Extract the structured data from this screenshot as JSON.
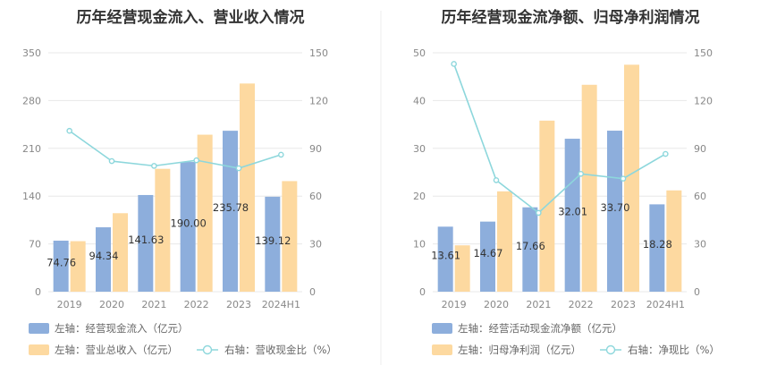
{
  "chart_data": [
    {
      "type": "bar",
      "title": "历年经营现金流入、营业收入情况",
      "categories": [
        "2019",
        "2020",
        "2021",
        "2022",
        "2023",
        "2024H1"
      ],
      "left_axis": {
        "ylim": [
          0,
          350
        ],
        "ticks": [
          "0",
          "70",
          "140",
          "210",
          "280",
          "350"
        ]
      },
      "right_axis": {
        "ylim": [
          0,
          150
        ],
        "ticks": [
          "0",
          "30",
          "60",
          "90",
          "120",
          "150"
        ]
      },
      "series": [
        {
          "name": "左轴：经营现金流入（亿元）",
          "kind": "bar",
          "axis": "left",
          "color": "#8DAEDC",
          "values": [
            74.76,
            94.34,
            141.63,
            190.0,
            235.78,
            139.12
          ],
          "labels": [
            "74.76",
            "94.34",
            "141.63",
            "190.00",
            "235.78",
            "139.12"
          ]
        },
        {
          "name": "左轴：营业总收入（亿元）",
          "kind": "bar",
          "axis": "left",
          "color": "#FDD9A0",
          "values": [
            74,
            115,
            180,
            230,
            305,
            162
          ]
        },
        {
          "name": "右轴：营收现金比（%）",
          "kind": "line",
          "axis": "right",
          "color": "#8DD7DC",
          "values": [
            101,
            82,
            79,
            82.5,
            77.5,
            86
          ]
        }
      ],
      "legend_placement": "bottom"
    },
    {
      "type": "bar",
      "title": "历年经营现金流净额、归母净利润情况",
      "categories": [
        "2019",
        "2020",
        "2021",
        "2022",
        "2023",
        "2024H1"
      ],
      "left_axis": {
        "ylim": [
          0,
          50
        ],
        "ticks": [
          "0",
          "10",
          "20",
          "30",
          "40",
          "50"
        ]
      },
      "right_axis": {
        "ylim": [
          0,
          150
        ],
        "ticks": [
          "0",
          "30",
          "60",
          "90",
          "120",
          "150"
        ]
      },
      "series": [
        {
          "name": "左轴：经营活动现金流净额（亿元）",
          "kind": "bar",
          "axis": "left",
          "color": "#8DAEDC",
          "values": [
            13.61,
            14.67,
            17.66,
            32.01,
            33.7,
            18.28
          ],
          "labels": [
            "13.61",
            "14.67",
            "17.66",
            "32.01",
            "33.70",
            "18.28"
          ]
        },
        {
          "name": "左轴：归母净利润（亿元）",
          "kind": "bar",
          "axis": "left",
          "color": "#FDD9A0",
          "values": [
            9.7,
            21,
            35.8,
            43.3,
            47.5,
            21.2
          ]
        },
        {
          "name": "右轴：净现比（%）",
          "kind": "line",
          "axis": "right",
          "color": "#8DD7DC",
          "values": [
            143,
            70,
            49.5,
            74,
            71,
            86.5
          ]
        }
      ],
      "legend_placement": "bottom"
    }
  ]
}
